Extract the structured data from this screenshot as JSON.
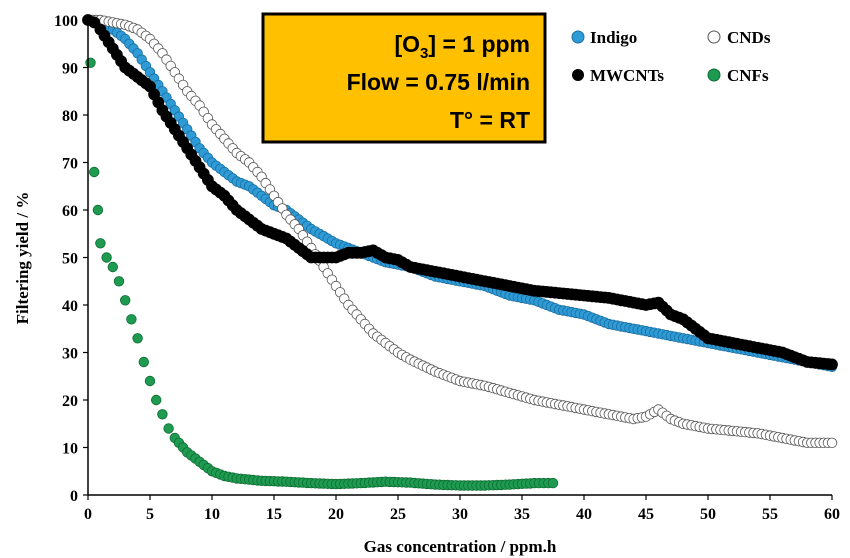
{
  "chart_data": {
    "type": "scatter",
    "xlabel": "Gas concentration / ppm.h",
    "ylabel": "Filtering yield / %",
    "xlim": [
      0,
      60
    ],
    "ylim": [
      0,
      100
    ],
    "xticks": [
      "0",
      "5",
      "10",
      "15",
      "20",
      "25",
      "30",
      "35",
      "40",
      "45",
      "50",
      "55",
      "60"
    ],
    "yticks": [
      "0",
      "10",
      "20",
      "30",
      "40",
      "50",
      "60",
      "70",
      "80",
      "90",
      "100"
    ],
    "grid": false,
    "legend_position": "top-right",
    "annotation": {
      "line1_main": "[O",
      "line1_sub": "3",
      "line1_rest": "] = 1 ppm",
      "line2": "Flow = 0.75 l/min",
      "line3": "T° = RT",
      "box_color": "#FFC000"
    },
    "series": [
      {
        "name": "Indigo",
        "color": "#2E9BD6",
        "marker": "filled-circle",
        "x": [
          0,
          0.5,
          1,
          2,
          3,
          4,
          5,
          6,
          7,
          8,
          9,
          10,
          11,
          12,
          13,
          14,
          15,
          16,
          17,
          18,
          20,
          22,
          24,
          26,
          28,
          30,
          32,
          34,
          36,
          38,
          40,
          42,
          44,
          46,
          48,
          50,
          52,
          54,
          56,
          58,
          60
        ],
        "y": [
          100,
          99.5,
          99,
          98,
          96,
          93,
          89,
          85,
          81,
          77,
          73,
          70,
          68,
          66,
          65,
          63,
          61,
          60,
          58,
          56,
          53,
          51,
          49,
          48,
          46,
          45,
          44,
          42,
          41,
          39,
          38,
          36,
          35,
          34,
          33,
          32,
          31,
          30,
          29,
          28,
          27
        ]
      },
      {
        "name": "CNDs",
        "color": "#FFFFFF",
        "marker": "open-circle",
        "x": [
          0,
          1,
          2,
          3,
          4,
          5,
          6,
          7,
          8,
          9,
          10,
          11,
          12,
          13,
          14,
          15,
          16,
          17,
          18,
          19,
          20,
          21,
          22,
          23,
          24,
          25,
          26,
          28,
          30,
          32,
          34,
          36,
          38,
          40,
          42,
          44,
          45,
          46,
          47,
          48,
          50,
          52,
          54,
          56,
          58,
          60
        ],
        "y": [
          100,
          100,
          99.5,
          99,
          98,
          96,
          93,
          89,
          85,
          82,
          78,
          75,
          72,
          70,
          67,
          63,
          59,
          56,
          52,
          48,
          44,
          40,
          37,
          34,
          32,
          30,
          28.5,
          26,
          24,
          23,
          21.5,
          20,
          19,
          18,
          17,
          16,
          16.5,
          18,
          16,
          15,
          14,
          13.5,
          13,
          12,
          11,
          11
        ]
      },
      {
        "name": "MWCNTs",
        "color": "#000000",
        "marker": "filled-circle",
        "x": [
          0,
          0.5,
          1,
          2,
          3,
          4,
          5,
          6,
          7,
          8,
          9,
          10,
          11,
          12,
          13,
          14,
          15,
          16,
          17,
          18,
          19,
          20,
          21,
          22,
          23,
          24,
          25,
          26,
          28,
          30,
          32,
          34,
          36,
          38,
          40,
          42,
          44,
          45,
          46,
          47,
          48,
          49,
          50,
          52,
          54,
          56,
          58,
          60
        ],
        "y": [
          100,
          99.5,
          98,
          94,
          90,
          88,
          86,
          81,
          77,
          73,
          69,
          65,
          63,
          60,
          58,
          56,
          55,
          54,
          52,
          50,
          50,
          50,
          51,
          51,
          51.5,
          50,
          49.5,
          48,
          47,
          46,
          45,
          44,
          43,
          42.5,
          42,
          41.5,
          40.5,
          40,
          40.5,
          38,
          37,
          35,
          33,
          32,
          31,
          30,
          28,
          27.5
        ]
      },
      {
        "name": "CNFs",
        "color": "#1E9B50",
        "marker": "filled-circle",
        "x": [
          0.2,
          0.5,
          0.8,
          1,
          1.5,
          2,
          2.5,
          3,
          3.5,
          4,
          4.5,
          5,
          5.5,
          6,
          6.5,
          7,
          8,
          9,
          10,
          11,
          12,
          14,
          16,
          18,
          20,
          22,
          24,
          26,
          28,
          30,
          32,
          34,
          36,
          37.5
        ],
        "y": [
          91,
          68,
          60,
          53,
          50,
          48,
          45,
          41,
          37,
          33,
          28,
          24,
          20,
          17,
          14,
          12,
          9,
          7,
          5,
          4,
          3.5,
          3,
          2.8,
          2.5,
          2.3,
          2.5,
          2.8,
          2.6,
          2.2,
          2,
          2,
          2.2,
          2.5,
          2.5
        ]
      }
    ]
  }
}
